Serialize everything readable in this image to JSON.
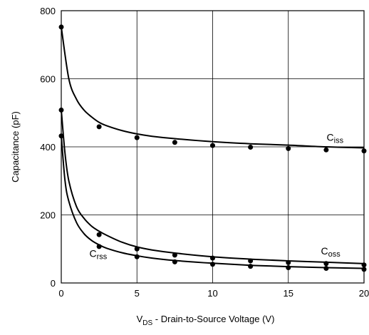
{
  "chart_data": {
    "type": "line",
    "title": "",
    "xlabel": {
      "main": "V",
      "sub": "DS",
      "rest": " - Drain-to-Source Voltage (V)"
    },
    "ylabel": "Capacitance (pF)",
    "xlim": [
      0,
      20
    ],
    "ylim": [
      0,
      800
    ],
    "x_ticks": [
      0,
      5,
      10,
      15,
      20
    ],
    "y_ticks": [
      0,
      200,
      400,
      600,
      800
    ],
    "grid": true,
    "legend": "inline labels",
    "series": [
      {
        "name": {
          "main": "C",
          "sub": "iss"
        },
        "points": [
          [
            0,
            752
          ],
          [
            2.5,
            459
          ],
          [
            5,
            427
          ],
          [
            7.5,
            413
          ],
          [
            10,
            404
          ],
          [
            12.5,
            399
          ],
          [
            15,
            395
          ],
          [
            17.5,
            391
          ],
          [
            20,
            388
          ]
        ],
        "curve": [
          [
            0,
            752
          ],
          [
            0.5,
            600
          ],
          [
            1,
            540
          ],
          [
            1.5,
            508
          ],
          [
            2,
            488
          ],
          [
            2.5,
            472
          ],
          [
            3,
            462
          ],
          [
            4,
            448
          ],
          [
            5,
            438
          ],
          [
            6,
            431
          ],
          [
            7.5,
            424
          ],
          [
            10,
            415
          ],
          [
            12.5,
            409
          ],
          [
            15,
            405
          ],
          [
            17.5,
            400
          ],
          [
            20,
            397
          ]
        ]
      },
      {
        "name": {
          "main": "C",
          "sub": "oss"
        },
        "points": [
          [
            0,
            508
          ],
          [
            2.5,
            142
          ],
          [
            5,
            100
          ],
          [
            7.5,
            82
          ],
          [
            10,
            73
          ],
          [
            12.5,
            65
          ],
          [
            15,
            60
          ],
          [
            17.5,
            57
          ],
          [
            20,
            53
          ]
        ],
        "curve": [
          [
            0,
            508
          ],
          [
            0.25,
            380
          ],
          [
            0.5,
            300
          ],
          [
            1,
            225
          ],
          [
            1.5,
            190
          ],
          [
            2,
            167
          ],
          [
            2.5,
            152
          ],
          [
            3,
            140
          ],
          [
            4,
            120
          ],
          [
            5,
            106
          ],
          [
            6,
            97
          ],
          [
            7.5,
            88
          ],
          [
            10,
            77
          ],
          [
            12.5,
            70
          ],
          [
            15,
            65
          ],
          [
            17.5,
            61
          ],
          [
            20,
            57
          ]
        ]
      },
      {
        "name": {
          "main": "C",
          "sub": "rss"
        },
        "points": [
          [
            0,
            432
          ],
          [
            2.5,
            107
          ],
          [
            5,
            77
          ],
          [
            7.5,
            62
          ],
          [
            10,
            55
          ],
          [
            12.5,
            49
          ],
          [
            15,
            45
          ],
          [
            17.5,
            43
          ],
          [
            20,
            40
          ]
        ],
        "curve": [
          [
            0,
            432
          ],
          [
            0.25,
            300
          ],
          [
            0.5,
            240
          ],
          [
            1,
            178
          ],
          [
            1.5,
            145
          ],
          [
            2,
            125
          ],
          [
            2.5,
            112
          ],
          [
            3,
            102
          ],
          [
            4,
            89
          ],
          [
            5,
            80
          ],
          [
            6,
            73
          ],
          [
            7.5,
            66
          ],
          [
            10,
            58
          ],
          [
            12.5,
            52
          ],
          [
            15,
            48
          ],
          [
            17.5,
            45
          ],
          [
            20,
            43
          ]
        ]
      }
    ]
  }
}
